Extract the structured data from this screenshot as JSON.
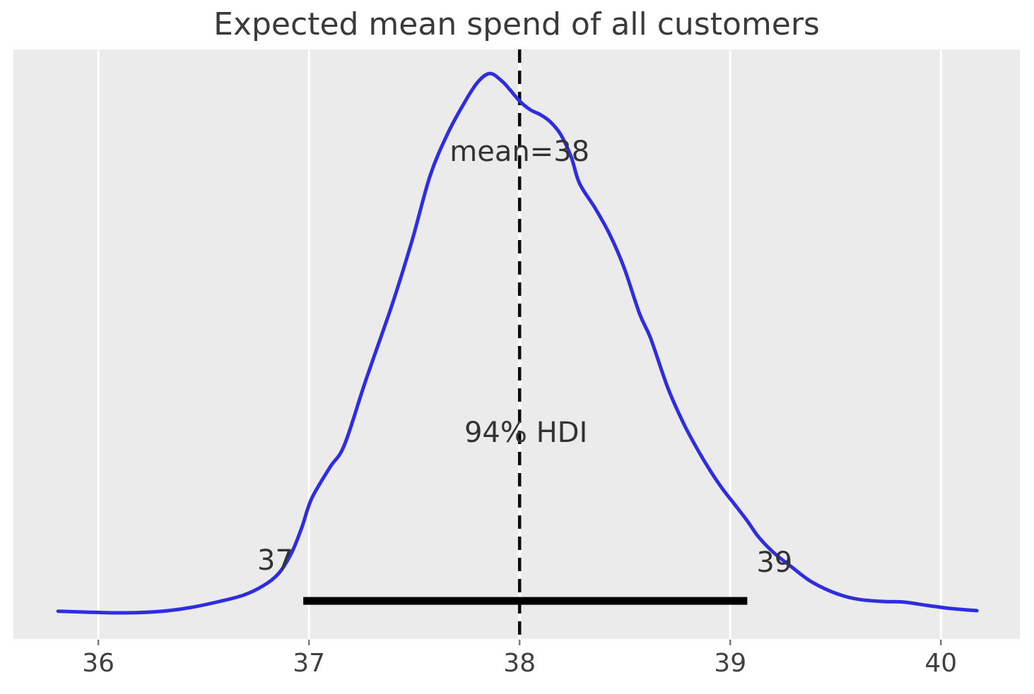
{
  "colors": {
    "figure_background": "#ffffff",
    "plot_background": "#ebebeb",
    "gridline": "#ffffff",
    "curve": "#2e2ee0",
    "hdi_bar": "#000000",
    "mean_line_dash": "#0a0a0a",
    "mean_line_gap": "#ffffff",
    "title_text": "#3a3a3a",
    "annotation_text": "#333333",
    "tick_text": "#404040",
    "tick_mark": "#7a7a7a"
  },
  "chart_data": {
    "type": "line",
    "subtype": "posterior-kde",
    "title": "Expected mean spend of all customers",
    "xlabel": "",
    "ylabel": "",
    "xlim": [
      35.597,
      40.375
    ],
    "ylim_density": [
      -0.0484,
      1.0447
    ],
    "x_ticks": [
      36,
      37,
      38,
      39,
      40
    ],
    "grid": "vertical-only",
    "legend": "none",
    "series": [
      {
        "name": "posterior-kde",
        "points": [
          [
            35.809,
            0.003
          ],
          [
            35.97,
            0.001
          ],
          [
            36.138,
            0.0
          ],
          [
            36.305,
            0.003
          ],
          [
            36.44,
            0.01
          ],
          [
            36.574,
            0.021
          ],
          [
            36.691,
            0.033
          ],
          [
            36.782,
            0.05
          ],
          [
            36.856,
            0.073
          ],
          [
            36.916,
            0.11
          ],
          [
            36.966,
            0.158
          ],
          [
            37.013,
            0.212
          ],
          [
            37.1,
            0.27
          ],
          [
            37.168,
            0.311
          ],
          [
            37.268,
            0.429
          ],
          [
            37.396,
            0.573
          ],
          [
            37.49,
            0.691
          ],
          [
            37.574,
            0.809
          ],
          [
            37.654,
            0.885
          ],
          [
            37.732,
            0.942
          ],
          [
            37.799,
            0.983
          ],
          [
            37.859,
            1.0
          ],
          [
            37.916,
            0.986
          ],
          [
            37.956,
            0.969
          ],
          [
            38.0,
            0.949
          ],
          [
            38.05,
            0.933
          ],
          [
            38.097,
            0.924
          ],
          [
            38.144,
            0.911
          ],
          [
            38.195,
            0.887
          ],
          [
            38.245,
            0.845
          ],
          [
            38.285,
            0.796
          ],
          [
            38.359,
            0.75
          ],
          [
            38.43,
            0.7
          ],
          [
            38.497,
            0.639
          ],
          [
            38.57,
            0.554
          ],
          [
            38.621,
            0.51
          ],
          [
            38.705,
            0.416
          ],
          [
            38.779,
            0.351
          ],
          [
            38.846,
            0.302
          ],
          [
            38.906,
            0.263
          ],
          [
            38.963,
            0.23
          ],
          [
            39.023,
            0.2
          ],
          [
            39.08,
            0.171
          ],
          [
            39.134,
            0.141
          ],
          [
            39.208,
            0.111
          ],
          [
            39.292,
            0.085
          ],
          [
            39.376,
            0.06
          ],
          [
            39.47,
            0.041
          ],
          [
            39.55,
            0.03
          ],
          [
            39.628,
            0.024
          ],
          [
            39.728,
            0.021
          ],
          [
            39.822,
            0.02
          ],
          [
            39.93,
            0.014
          ],
          [
            40.047,
            0.008
          ],
          [
            40.171,
            0.004
          ]
        ]
      }
    ],
    "mean_line": {
      "x": 38,
      "style": "dashed",
      "label": "mean=38",
      "label_pos": [
        38.0,
        0.855
      ]
    },
    "hdi": {
      "prob_label": "94% HDI",
      "prob_label_pos": [
        38.03,
        0.334
      ],
      "lower": 37,
      "upper": 39,
      "lower_label": "37",
      "upper_label": "39",
      "lower_label_pos": [
        36.84,
        0.097
      ],
      "upper_label_pos": [
        39.21,
        0.093
      ],
      "bar_x": [
        36.973,
        39.081
      ],
      "bar_density_y": 0.0222
    }
  }
}
